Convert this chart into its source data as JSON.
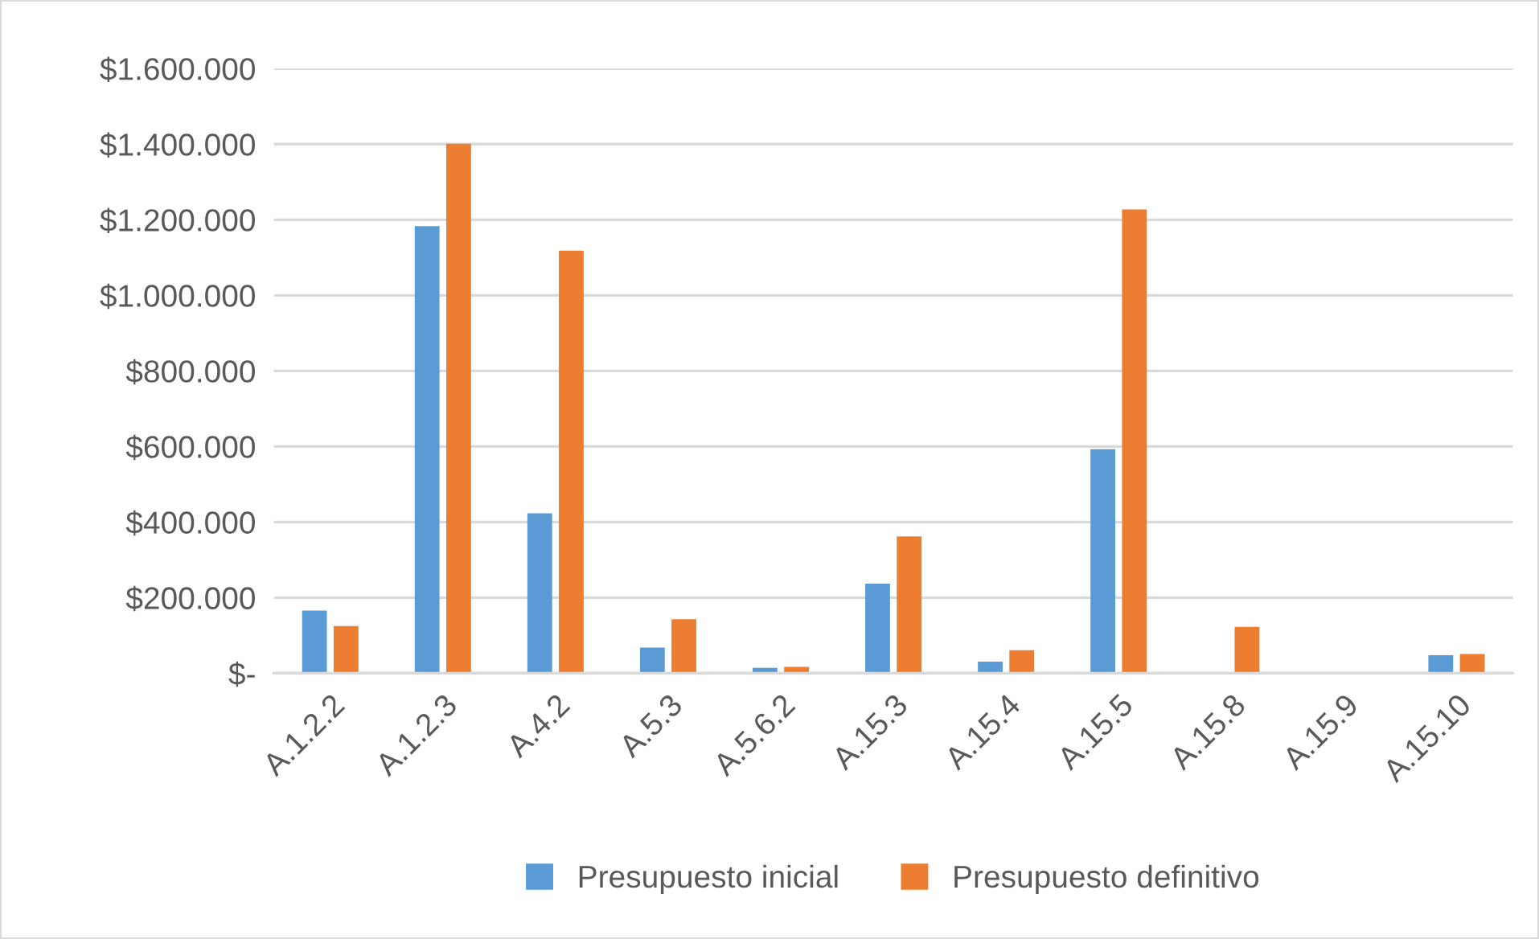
{
  "chart_data": {
    "type": "bar",
    "categories": [
      "A.1.2.2",
      "A.1.2.3",
      "A.4.2",
      "A.5.3",
      "A.5.6.2",
      "A.15.3",
      "A.15.4",
      "A.15.5",
      "A.15.8",
      "A.15.9",
      "A.15.10"
    ],
    "series": [
      {
        "name": "Presupuesto inicial",
        "color": "#5b9bd5",
        "values": [
          166000,
          1183000,
          423000,
          68000,
          14000,
          237000,
          31000,
          593000,
          0,
          0,
          48000
        ]
      },
      {
        "name": "Presupuesto definitivo",
        "color": "#ed7d31",
        "values": [
          125000,
          1401000,
          1118000,
          143000,
          17000,
          362000,
          61000,
          1227000,
          123000,
          null,
          51000
        ]
      }
    ],
    "ylim": [
      0,
      1600000
    ],
    "yticks": [
      {
        "value": 0,
        "label": "$-"
      },
      {
        "value": 200000,
        "label": "$200.000"
      },
      {
        "value": 400000,
        "label": "$400.000"
      },
      {
        "value": 600000,
        "label": "$600.000"
      },
      {
        "value": 800000,
        "label": "$800.000"
      },
      {
        "value": 1000000,
        "label": "$1.000.000"
      },
      {
        "value": 1200000,
        "label": "$1.200.000"
      },
      {
        "value": 1400000,
        "label": "$1.400.000"
      },
      {
        "value": 1600000,
        "label": "$1.600.000"
      }
    ],
    "grid": "y",
    "legend": "bottom"
  }
}
